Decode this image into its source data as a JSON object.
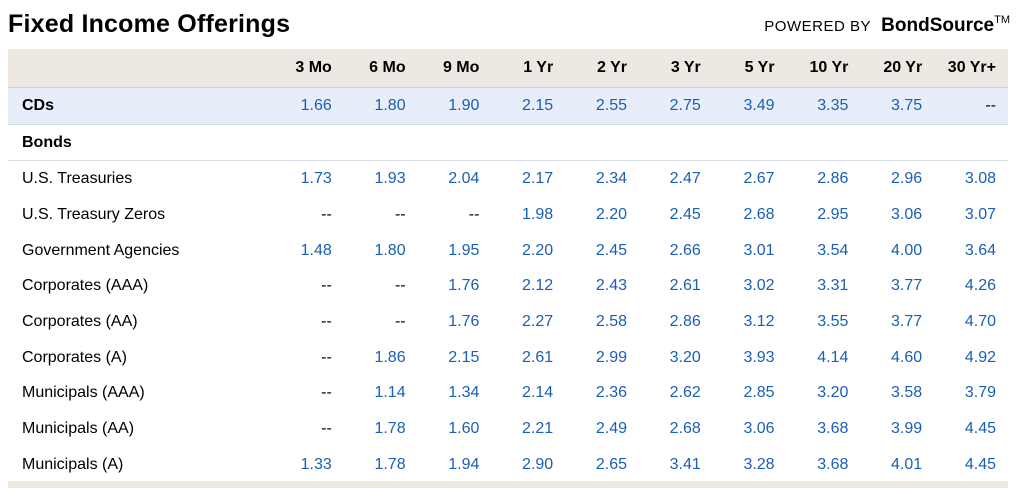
{
  "header": {
    "title": "Fixed Income Offerings",
    "powered_by": "POWERED BY",
    "brand": "BondSource",
    "trademark": "TM"
  },
  "table": {
    "columns": [
      "3 Mo",
      "6 Mo",
      "9 Mo",
      "1 Yr",
      "2 Yr",
      "3 Yr",
      "5 Yr",
      "10 Yr",
      "20 Yr",
      "30 Yr+"
    ],
    "cds": {
      "label": "CDs",
      "values": [
        "1.66",
        "1.80",
        "1.90",
        "2.15",
        "2.55",
        "2.75",
        "3.49",
        "3.35",
        "3.75",
        "--"
      ]
    },
    "bonds_section_label": "Bonds",
    "rows": [
      {
        "label": "U.S. Treasuries",
        "values": [
          "1.73",
          "1.93",
          "2.04",
          "2.17",
          "2.34",
          "2.47",
          "2.67",
          "2.86",
          "2.96",
          "3.08"
        ]
      },
      {
        "label": "U.S. Treasury Zeros",
        "values": [
          "--",
          "--",
          "--",
          "1.98",
          "2.20",
          "2.45",
          "2.68",
          "2.95",
          "3.06",
          "3.07"
        ]
      },
      {
        "label": "Government Agencies",
        "values": [
          "1.48",
          "1.80",
          "1.95",
          "2.20",
          "2.45",
          "2.66",
          "3.01",
          "3.54",
          "4.00",
          "3.64"
        ]
      },
      {
        "label": "Corporates (AAA)",
        "values": [
          "--",
          "--",
          "1.76",
          "2.12",
          "2.43",
          "2.61",
          "3.02",
          "3.31",
          "3.77",
          "4.26"
        ]
      },
      {
        "label": "Corporates (AA)",
        "values": [
          "--",
          "--",
          "1.76",
          "2.27",
          "2.58",
          "2.86",
          "3.12",
          "3.55",
          "3.77",
          "4.70"
        ]
      },
      {
        "label": "Corporates (A)",
        "values": [
          "--",
          "1.86",
          "2.15",
          "2.61",
          "2.99",
          "3.20",
          "3.93",
          "4.14",
          "4.60",
          "4.92"
        ]
      },
      {
        "label": "Municipals (AAA)",
        "values": [
          "--",
          "1.14",
          "1.34",
          "2.14",
          "2.36",
          "2.62",
          "2.85",
          "3.20",
          "3.58",
          "3.79"
        ]
      },
      {
        "label": "Municipals (AA)",
        "values": [
          "--",
          "1.78",
          "1.60",
          "2.21",
          "2.49",
          "2.68",
          "3.06",
          "3.68",
          "3.99",
          "4.45"
        ]
      },
      {
        "label": "Municipals (A)",
        "values": [
          "1.33",
          "1.78",
          "1.94",
          "2.90",
          "2.65",
          "3.41",
          "3.28",
          "3.68",
          "4.01",
          "4.45"
        ]
      }
    ]
  }
}
